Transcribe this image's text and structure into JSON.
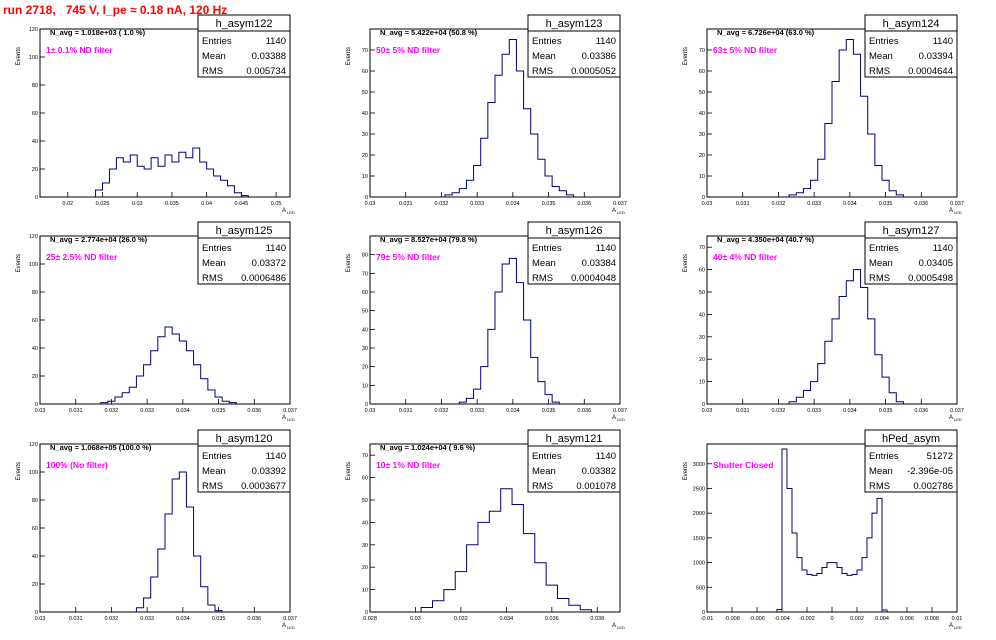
{
  "title": "run 2718,   745 V, I_pe ≈ 0.18 nA, 120 Hz",
  "colors": {
    "title": "#ff0000",
    "annotation": "#ff00ff",
    "histogram": "#000080",
    "axis": "#000000"
  },
  "chart_data": [
    {
      "type": "histogram",
      "name": "h_asym122",
      "stats": {
        "Entries": "1140",
        "Mean": "0.03388",
        "RMS": "0.005734"
      },
      "navg": "N_avg = 1.018e+03 ( 1.0 %)",
      "note": "1± 0.1% ND filter",
      "ylabel": "Events",
      "xlabel": "A",
      "xsub": "LED",
      "xticks": [
        "0.02",
        "0.025",
        "0.03",
        "0.035",
        "0.04",
        "0.045",
        "0.05"
      ],
      "xlim": [
        0.016,
        0.052
      ],
      "yticks": [
        "0",
        "20",
        "40",
        "60",
        "80",
        "100",
        "120"
      ],
      "ylim": [
        0,
        120
      ],
      "x": [
        0.0245,
        0.0255,
        0.0265,
        0.0275,
        0.0285,
        0.0295,
        0.0305,
        0.0315,
        0.0325,
        0.0335,
        0.0345,
        0.0355,
        0.0365,
        0.0375,
        0.0385,
        0.0395,
        0.0405,
        0.0415,
        0.0425,
        0.0435,
        0.0445,
        0.0455
      ],
      "values": [
        5,
        10,
        20,
        28,
        25,
        30,
        22,
        20,
        28,
        22,
        30,
        25,
        32,
        28,
        35,
        25,
        20,
        15,
        12,
        8,
        3,
        1
      ]
    },
    {
      "type": "histogram",
      "name": "h_asym123",
      "stats": {
        "Entries": "1140",
        "Mean": "0.03386",
        "RMS": "0.0005052"
      },
      "navg": "N_avg = 5.422e+04 (50.8 %)",
      "note": "50± 5% ND filter",
      "ylabel": "Events",
      "xlabel": "A",
      "xsub": "LED",
      "xticks": [
        "0.03",
        "0.031",
        "0.032",
        "0.033",
        "0.034",
        "0.035",
        "0.036",
        "0.037"
      ],
      "xlim": [
        0.03,
        0.037
      ],
      "yticks": [
        "0",
        "10",
        "20",
        "30",
        "40",
        "50",
        "60",
        "70"
      ],
      "ylim": [
        0,
        80
      ],
      "x": [
        0.0322,
        0.0324,
        0.0326,
        0.0328,
        0.033,
        0.0332,
        0.0334,
        0.0336,
        0.0338,
        0.034,
        0.0342,
        0.0344,
        0.0346,
        0.0348,
        0.035,
        0.0352,
        0.0354,
        0.0356
      ],
      "values": [
        1,
        2,
        4,
        8,
        15,
        28,
        45,
        58,
        68,
        75,
        60,
        42,
        30,
        18,
        10,
        5,
        3,
        1
      ]
    },
    {
      "type": "histogram",
      "name": "h_asym124",
      "stats": {
        "Entries": "1140",
        "Mean": "0.03394",
        "RMS": "0.0004644"
      },
      "navg": "N_avg = 6.726e+04 (63.0 %)",
      "note": "63± 5% ND filter",
      "ylabel": "Events",
      "xlabel": "A",
      "xsub": "LED",
      "xticks": [
        "0.03",
        "0.031",
        "0.032",
        "0.033",
        "0.034",
        "0.035",
        "0.036",
        "0.037"
      ],
      "xlim": [
        0.03,
        0.037
      ],
      "yticks": [
        "0",
        "10",
        "20",
        "30",
        "40",
        "50",
        "60",
        "70"
      ],
      "ylim": [
        0,
        80
      ],
      "x": [
        0.0324,
        0.0326,
        0.0328,
        0.033,
        0.0332,
        0.0334,
        0.0336,
        0.0338,
        0.034,
        0.0342,
        0.0344,
        0.0346,
        0.0348,
        0.035,
        0.0352,
        0.0354
      ],
      "values": [
        1,
        2,
        4,
        8,
        18,
        35,
        55,
        70,
        75,
        68,
        48,
        30,
        15,
        8,
        3,
        1
      ]
    },
    {
      "type": "histogram",
      "name": "h_asym125",
      "stats": {
        "Entries": "1140",
        "Mean": "0.03372",
        "RMS": "0.0006486"
      },
      "navg": "N_avg = 2.774e+04 (26.0 %)",
      "note": "25± 2.5% ND filter",
      "ylabel": "Events",
      "xlabel": "A",
      "xsub": "LED",
      "xticks": [
        "0.03",
        "0.031",
        "0.032",
        "0.033",
        "0.034",
        "0.035",
        "0.036",
        "0.037"
      ],
      "xlim": [
        0.03,
        0.037
      ],
      "yticks": [
        "0",
        "20",
        "40",
        "60",
        "80",
        "100",
        "120"
      ],
      "ylim": [
        0,
        120
      ],
      "x": [
        0.0318,
        0.032,
        0.0322,
        0.0324,
        0.0326,
        0.0328,
        0.033,
        0.0332,
        0.0334,
        0.0336,
        0.0338,
        0.034,
        0.0342,
        0.0344,
        0.0346,
        0.0348,
        0.035,
        0.0352,
        0.0354
      ],
      "values": [
        1,
        2,
        5,
        8,
        12,
        20,
        28,
        38,
        48,
        55,
        50,
        45,
        38,
        28,
        18,
        10,
        5,
        2,
        1
      ]
    },
    {
      "type": "histogram",
      "name": "h_asym126",
      "stats": {
        "Entries": "1140",
        "Mean": "0.03384",
        "RMS": "0.0004048"
      },
      "navg": "N_avg = 8.527e+04 (79.8 %)",
      "note": "79± 5% ND filter",
      "ylabel": "Events",
      "xlabel": "A",
      "xsub": "LED",
      "xticks": [
        "0.03",
        "0.031",
        "0.032",
        "0.033",
        "0.034",
        "0.035",
        "0.036",
        "0.037"
      ],
      "xlim": [
        0.03,
        0.037
      ],
      "yticks": [
        "0",
        "10",
        "20",
        "30",
        "40",
        "50",
        "60",
        "70",
        "80"
      ],
      "ylim": [
        0,
        90
      ],
      "x": [
        0.0326,
        0.0328,
        0.033,
        0.0332,
        0.0334,
        0.0336,
        0.0338,
        0.034,
        0.0342,
        0.0344,
        0.0346,
        0.0348,
        0.035,
        0.0352
      ],
      "values": [
        1,
        3,
        8,
        20,
        40,
        60,
        75,
        78,
        65,
        45,
        25,
        12,
        5,
        1
      ]
    },
    {
      "type": "histogram",
      "name": "h_asym127",
      "stats": {
        "Entries": "1140",
        "Mean": "0.03405",
        "RMS": "0.0005498"
      },
      "navg": "N_avg = 4.350e+04 (40.7 %)",
      "note": "40± 4% ND filter",
      "ylabel": "Events",
      "xlabel": "A",
      "xsub": "LED",
      "xticks": [
        "0.03",
        "0.031",
        "0.032",
        "0.033",
        "0.034",
        "0.035",
        "0.036",
        "0.037"
      ],
      "xlim": [
        0.03,
        0.037
      ],
      "yticks": [
        "0",
        "10",
        "20",
        "30",
        "40",
        "50",
        "60",
        "70"
      ],
      "ylim": [
        0,
        75
      ],
      "x": [
        0.0324,
        0.0326,
        0.0328,
        0.033,
        0.0332,
        0.0334,
        0.0336,
        0.0338,
        0.034,
        0.0342,
        0.0344,
        0.0346,
        0.0348,
        0.035,
        0.0352,
        0.0354
      ],
      "values": [
        1,
        3,
        6,
        10,
        18,
        28,
        38,
        48,
        55,
        60,
        52,
        38,
        22,
        12,
        5,
        1
      ]
    },
    {
      "type": "histogram",
      "name": "h_asym120",
      "stats": {
        "Entries": "1140",
        "Mean": "0.03392",
        "RMS": "0.0003677"
      },
      "navg": "N_avg = 1.068e+05 (100.0 %)",
      "note": "100% (No filter)",
      "ylabel": "Events",
      "xlabel": "A",
      "xsub": "LED",
      "xticks": [
        "0.03",
        "0.031",
        "0.032",
        "0.033",
        "0.034",
        "0.035",
        "0.036",
        "0.037"
      ],
      "xlim": [
        0.03,
        0.037
      ],
      "yticks": [
        "0",
        "20",
        "40",
        "60",
        "80",
        "100",
        "120"
      ],
      "ylim": [
        0,
        120
      ],
      "x": [
        0.0328,
        0.033,
        0.0332,
        0.0334,
        0.0336,
        0.0338,
        0.034,
        0.0342,
        0.0344,
        0.0346,
        0.0348,
        0.035
      ],
      "values": [
        3,
        10,
        25,
        45,
        70,
        95,
        100,
        75,
        40,
        18,
        5,
        1
      ]
    },
    {
      "type": "histogram",
      "name": "h_asym121",
      "stats": {
        "Entries": "1140",
        "Mean": "0.03382",
        "RMS": "0.001078"
      },
      "navg": "N_avg = 1.024e+04 ( 9.6 %)",
      "note": "10± 1% ND filter",
      "ylabel": "Events",
      "xlabel": "A",
      "xsub": "LED",
      "xticks": [
        "0.028",
        "0.03",
        "0.032",
        "0.034",
        "0.036",
        "0.038"
      ],
      "xlim": [
        0.028,
        0.039
      ],
      "yticks": [
        "0",
        "10",
        "20",
        "30",
        "40",
        "50",
        "60",
        "70"
      ],
      "ylim": [
        0,
        75
      ],
      "x": [
        0.0305,
        0.031,
        0.0315,
        0.032,
        0.0325,
        0.033,
        0.0335,
        0.034,
        0.0345,
        0.035,
        0.0355,
        0.036,
        0.0365,
        0.037,
        0.0375
      ],
      "values": [
        2,
        5,
        10,
        18,
        30,
        40,
        45,
        55,
        48,
        35,
        22,
        12,
        6,
        3,
        1
      ]
    },
    {
      "type": "histogram",
      "name": "hPed_asym",
      "stats": {
        "Entries": "51272",
        "Mean": "-2.396e-05",
        "RMS": "0.002786"
      },
      "navg": "",
      "note": "Shutter Closed",
      "ylabel": "Events",
      "xlabel": "A",
      "xsub": "LED",
      "xticks": [
        "-0.01",
        "-0.008",
        "-0.006",
        "-0.004",
        "-0.002",
        "0",
        "0.002",
        "0.004",
        "0.006",
        "0.008",
        "0.01"
      ],
      "xlim": [
        -0.01,
        0.01
      ],
      "yticks": [
        "0",
        "500",
        "1000",
        "1500",
        "2000",
        "2500",
        "3000"
      ],
      "ylim": [
        0,
        3400
      ],
      "x": [
        -0.0042,
        -0.0038,
        -0.0034,
        -0.003,
        -0.0026,
        -0.0022,
        -0.0018,
        -0.0014,
        -0.001,
        -0.0006,
        -0.0002,
        0.0002,
        0.0006,
        0.001,
        0.0014,
        0.0018,
        0.0022,
        0.0026,
        0.003,
        0.0034,
        0.0038,
        0.0042
      ],
      "values": [
        50,
        3300,
        2500,
        1600,
        1100,
        850,
        760,
        740,
        780,
        900,
        1000,
        1000,
        900,
        780,
        740,
        760,
        850,
        1100,
        1500,
        2000,
        2300,
        40
      ]
    }
  ]
}
